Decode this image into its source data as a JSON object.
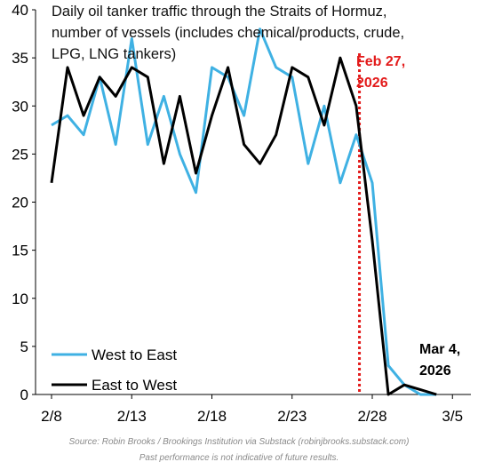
{
  "chart_data": {
    "type": "line",
    "title_lines": [
      "Daily oil tanker traffic through the Straits of Hormuz,",
      "number of vessels (includes chemical/products, crude,",
      "LPG, LNG tankers)"
    ],
    "xlabel": "",
    "ylabel": "",
    "ylim": [
      0,
      40
    ],
    "y_ticks": [
      0,
      5,
      10,
      15,
      20,
      25,
      30,
      35,
      40
    ],
    "x_ticks": [
      "2/8",
      "2/13",
      "2/18",
      "2/23",
      "2/28",
      "3/5"
    ],
    "x_tick_days": [
      0,
      5,
      10,
      15,
      20,
      25
    ],
    "x_dates": [
      "2/8",
      "2/9",
      "2/10",
      "2/11",
      "2/12",
      "2/13",
      "2/14",
      "2/15",
      "2/16",
      "2/17",
      "2/18",
      "2/19",
      "2/20",
      "2/21",
      "2/22",
      "2/23",
      "2/24",
      "2/25",
      "2/26",
      "2/27",
      "2/28",
      "3/1",
      "3/2",
      "3/3",
      "3/4"
    ],
    "grid": false,
    "legend_position": "bottom-left",
    "series": [
      {
        "name": "West to East",
        "color": "#3fb1e3",
        "values": [
          28,
          29,
          27,
          33,
          26,
          37,
          26,
          31,
          25,
          21,
          34,
          33,
          29,
          38,
          34,
          33,
          24,
          30,
          22,
          27,
          22,
          3,
          1,
          0,
          0
        ]
      },
      {
        "name": "East to West",
        "color": "#000000",
        "values": [
          22,
          34,
          29,
          33,
          31,
          34,
          33,
          24,
          31,
          23,
          29,
          34,
          26,
          24,
          27,
          34,
          33,
          28,
          35,
          30,
          16,
          0,
          1,
          0.5,
          0
        ]
      }
    ],
    "vline": {
      "date": "2/27",
      "day_offset": 19.2,
      "color": "#e31b1b",
      "style": "dotted"
    },
    "annotations": [
      {
        "lines": [
          "Feb 27,",
          "2026"
        ],
        "color": "#e31b1b"
      },
      {
        "lines": [
          "Mar 4,",
          "2026"
        ],
        "color": "#000000"
      }
    ],
    "source_lines": [
      "Source: Robin Brooks / Brookings Institution via Substack (robinjbrooks.substack.com)",
      "Past performance is not indicative of future results."
    ]
  }
}
